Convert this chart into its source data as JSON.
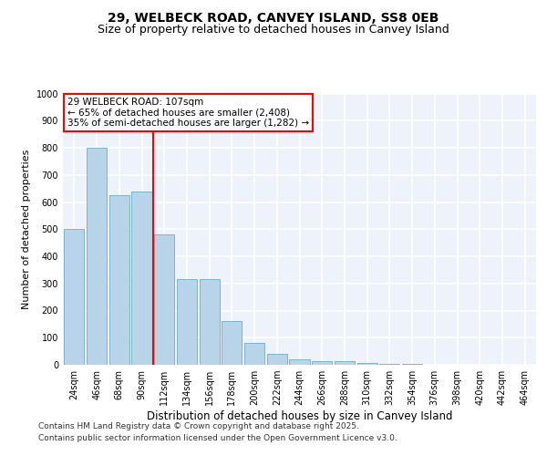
{
  "title1": "29, WELBECK ROAD, CANVEY ISLAND, SS8 0EB",
  "title2": "Size of property relative to detached houses in Canvey Island",
  "xlabel": "Distribution of detached houses by size in Canvey Island",
  "ylabel": "Number of detached properties",
  "categories": [
    "24sqm",
    "46sqm",
    "68sqm",
    "90sqm",
    "112sqm",
    "134sqm",
    "156sqm",
    "178sqm",
    "200sqm",
    "222sqm",
    "244sqm",
    "266sqm",
    "288sqm",
    "310sqm",
    "332sqm",
    "354sqm",
    "376sqm",
    "398sqm",
    "420sqm",
    "442sqm",
    "464sqm"
  ],
  "values": [
    500,
    800,
    625,
    640,
    480,
    315,
    315,
    160,
    80,
    40,
    20,
    15,
    12,
    7,
    3,
    2,
    1,
    1,
    0.5,
    0.5,
    0.5
  ],
  "bar_color": "#b8d4e8",
  "bar_edge_color": "#5a9fc4",
  "vline_color": "red",
  "annotation_text": "29 WELBECK ROAD: 107sqm\n← 65% of detached houses are smaller (2,408)\n35% of semi-detached houses are larger (1,282) →",
  "annotation_box_color": "white",
  "annotation_box_edge": "red",
  "ylim": [
    0,
    1000
  ],
  "yticks": [
    0,
    100,
    200,
    300,
    400,
    500,
    600,
    700,
    800,
    900,
    1000
  ],
  "bg_color": "#eef2fb",
  "grid_color": "white",
  "footer1": "Contains HM Land Registry data © Crown copyright and database right 2025.",
  "footer2": "Contains public sector information licensed under the Open Government Licence v3.0.",
  "title1_fontsize": 10,
  "title2_fontsize": 9,
  "xlabel_fontsize": 8.5,
  "ylabel_fontsize": 8,
  "tick_fontsize": 7,
  "annotation_fontsize": 7.5,
  "footer_fontsize": 6.5
}
